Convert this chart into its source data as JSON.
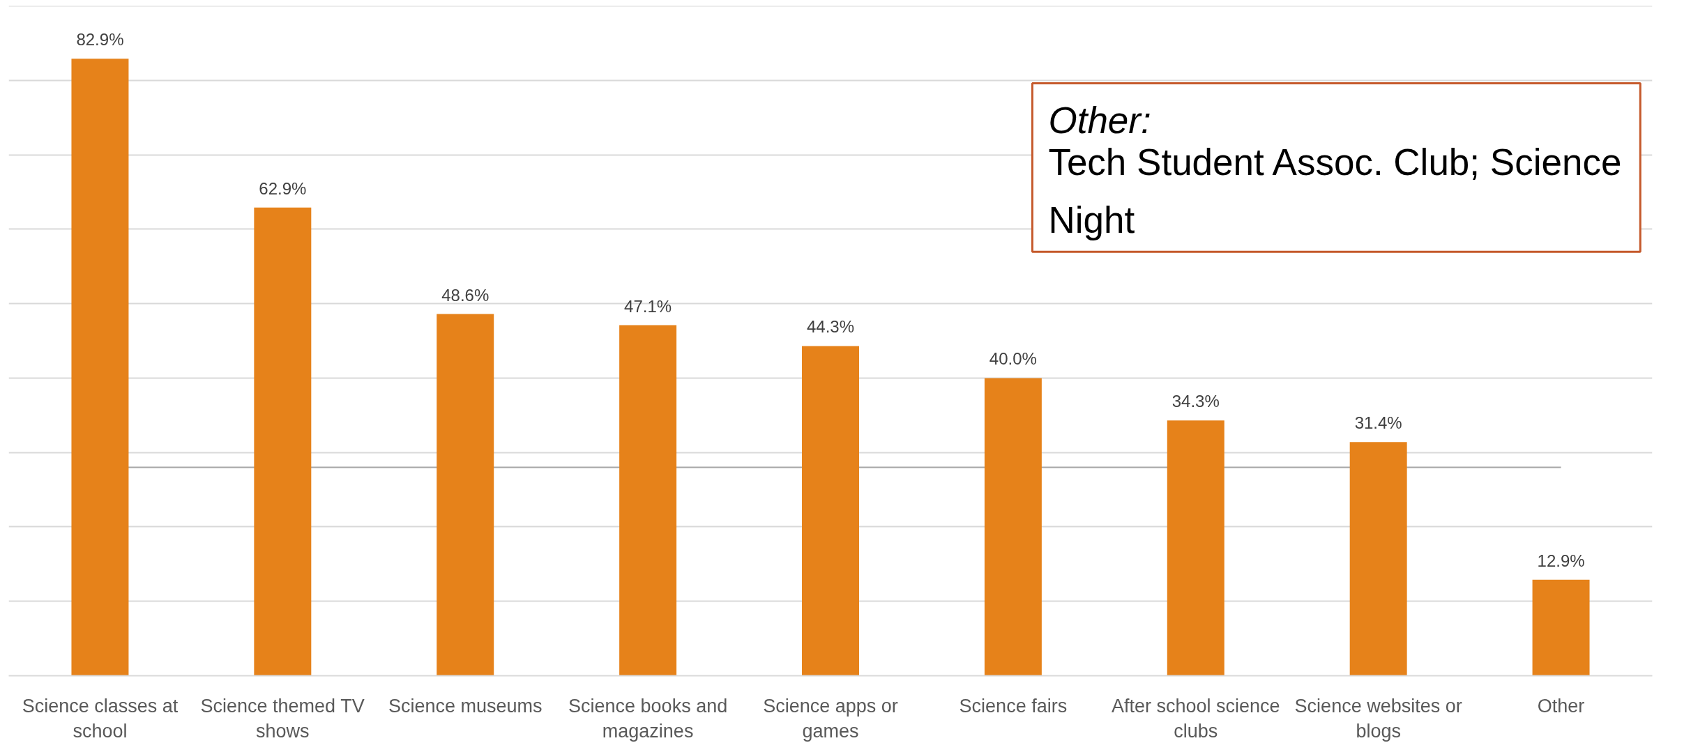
{
  "chart_data": {
    "type": "bar",
    "categories": [
      "Science classes at school",
      "Science themed TV shows",
      "Science museums",
      "Science books and magazines",
      "Science apps or games",
      "Science fairs",
      "After school science clubs",
      "Science websites or blogs",
      "Other"
    ],
    "values": [
      82.9,
      62.9,
      48.6,
      47.1,
      44.3,
      40.0,
      34.3,
      31.4,
      12.9
    ],
    "value_labels": [
      "82.9%",
      "62.9%",
      "48.6%",
      "47.1%",
      "44.3%",
      "40.0%",
      "34.3%",
      "31.4%",
      "12.9%"
    ],
    "color": "#e6821a",
    "ylim": [
      0,
      90
    ],
    "yticks": [
      {
        "value": 0,
        "label": null
      },
      {
        "value": 10,
        "label": null
      },
      {
        "value": 20,
        "label": null
      },
      {
        "value": 30,
        "label": null
      },
      {
        "value": 40,
        "label": null
      },
      {
        "value": 50,
        "label": null
      },
      {
        "value": 60,
        "label": null
      },
      {
        "value": 70,
        "label": null
      },
      {
        "value": 80,
        "label": null
      },
      {
        "value": 90,
        "label": null
      }
    ],
    "grid": "y",
    "tick_labels": "x",
    "ref_lines": [
      {
        "axis": "y",
        "value": 28,
        "color": "#a6a6a6"
      }
    ],
    "annotations": [
      "Other:",
      "Tech Student Assoc. Club; Science Night"
    ]
  }
}
